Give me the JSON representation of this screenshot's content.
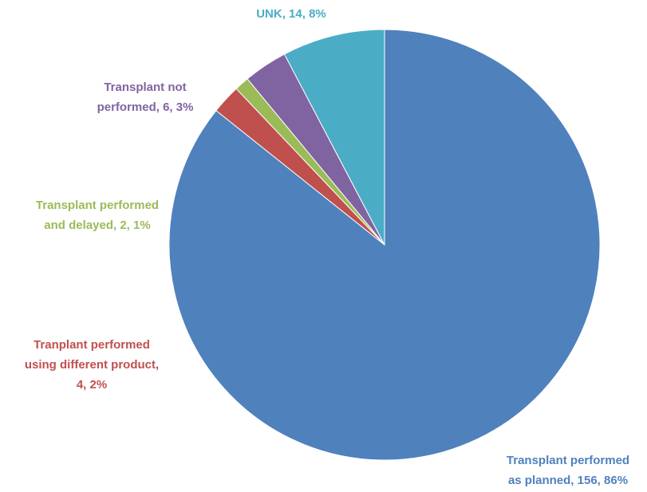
{
  "chart_data": {
    "type": "pie",
    "labels": [
      [
        "Transplant performed",
        "as planned, 156, 86%"
      ],
      [
        "Tranplant performed",
        "using different product,",
        "4, 2%"
      ],
      [
        "Transplant performed",
        "and delayed, 2, 1%"
      ],
      [
        "Transplant not",
        "performed, 6, 3%"
      ],
      [
        "UNK, 14, 8%"
      ]
    ],
    "values": [
      156,
      4,
      2,
      6,
      14
    ],
    "colors": [
      "#4f81bd",
      "#c0504d",
      "#9bbb59",
      "#8064a2",
      "#4bacc6"
    ]
  }
}
